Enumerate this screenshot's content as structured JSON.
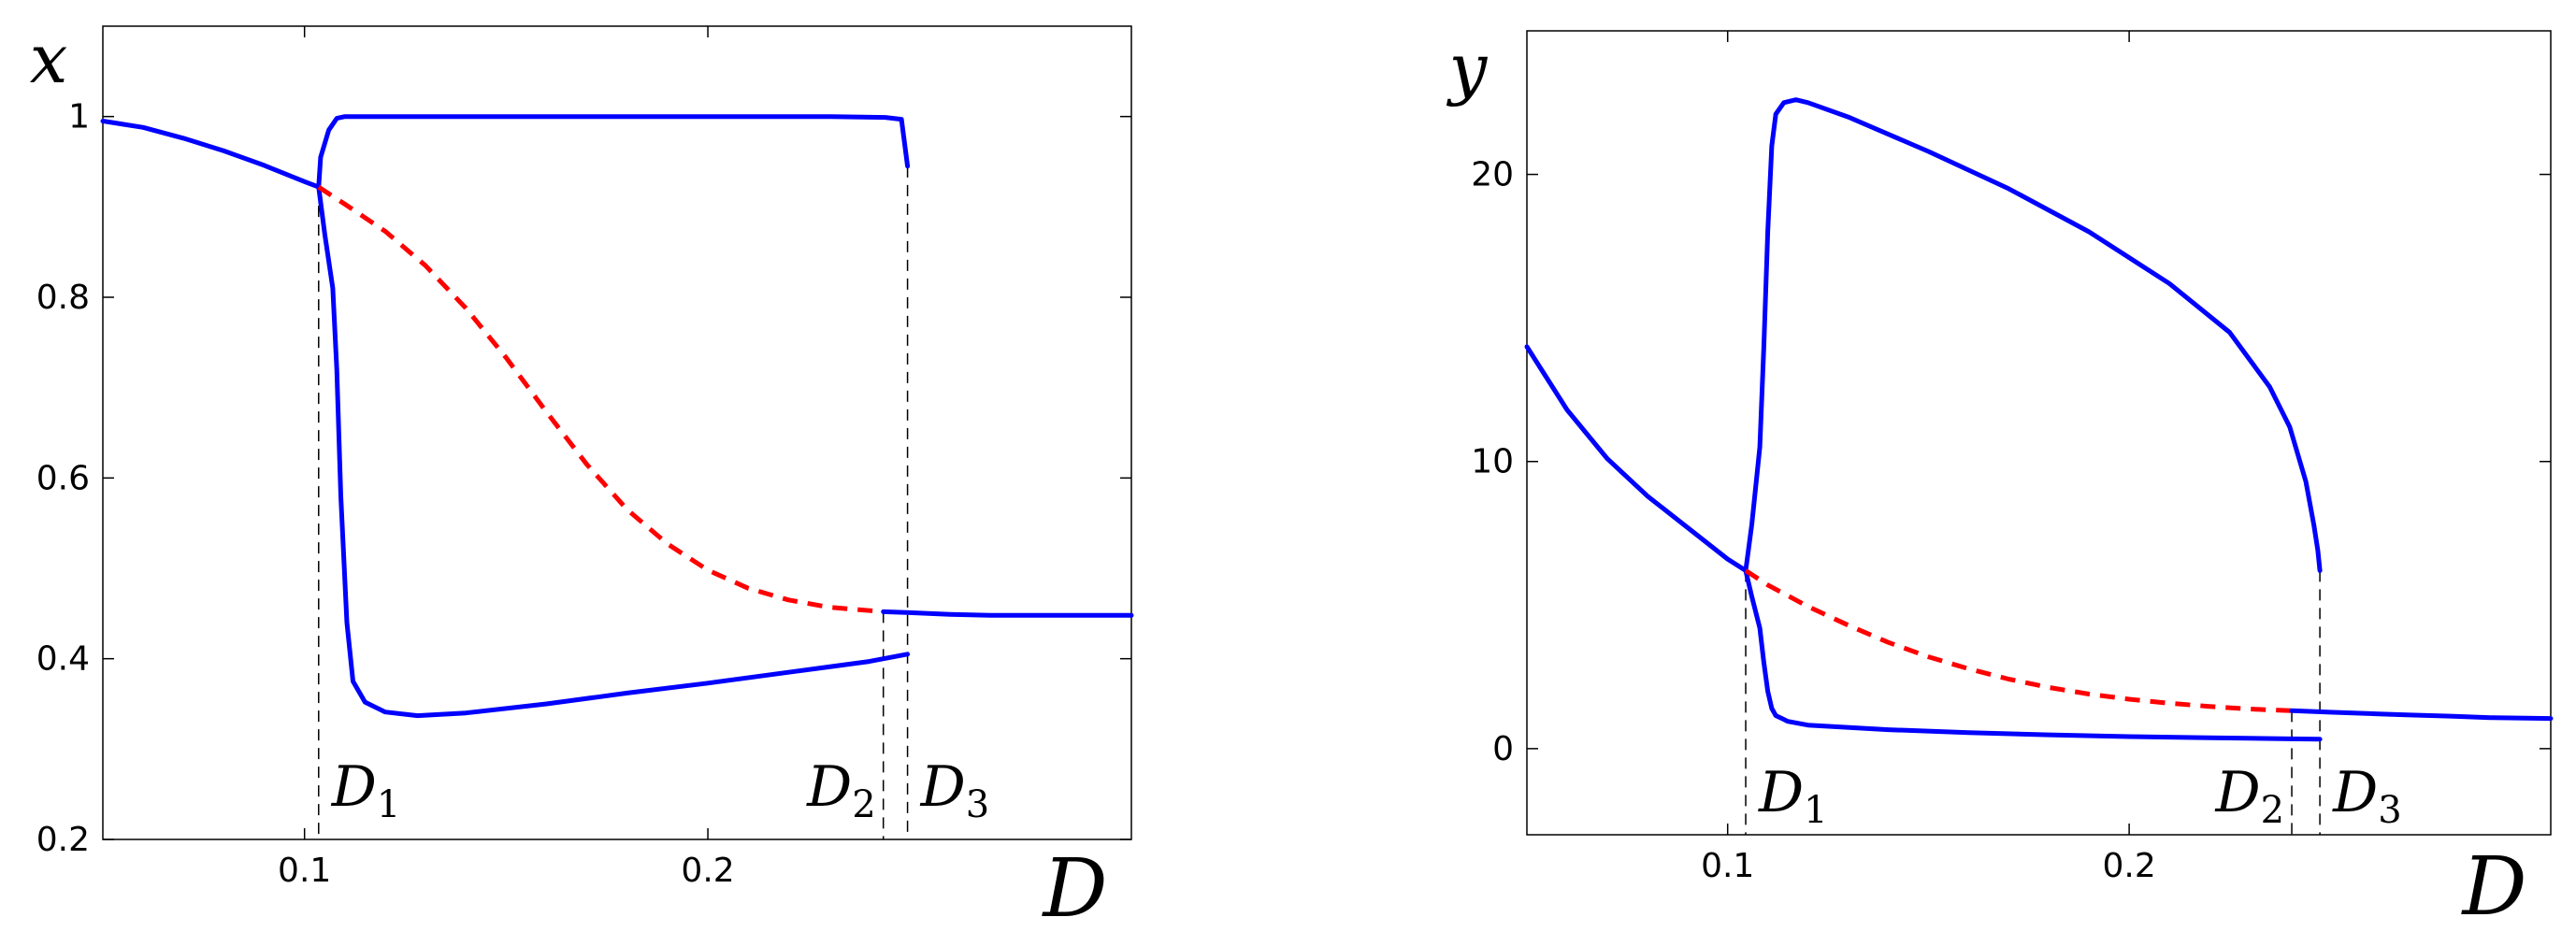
{
  "chart_data": [
    {
      "type": "line",
      "xlabel": "D",
      "ylabel": "x",
      "xlim": [
        0.05,
        0.305
      ],
      "ylim": [
        0.2,
        1.1
      ],
      "xticks": [
        0.1,
        0.2
      ],
      "xtick_labels": [
        "0.1",
        "0.2"
      ],
      "yticks": [
        0.2,
        0.4,
        0.6,
        0.8,
        1.0
      ],
      "ytick_labels": [
        "0.2",
        "0.4",
        "0.6",
        "0.8",
        "1"
      ],
      "grid": false,
      "series": [
        {
          "style": "solid",
          "color": "#0000ff",
          "x": [
            0.05,
            0.06,
            0.07,
            0.08,
            0.09,
            0.1,
            0.1035
          ],
          "y": [
            0.995,
            0.988,
            0.976,
            0.962,
            0.946,
            0.928,
            0.922
          ]
        },
        {
          "style": "solid",
          "color": "#0000ff",
          "x": [
            0.1035,
            0.104,
            0.106,
            0.108,
            0.11,
            0.13,
            0.16,
            0.2,
            0.23,
            0.244,
            0.248,
            0.2495
          ],
          "y": [
            0.922,
            0.955,
            0.985,
            0.998,
            1.0,
            1.0,
            1.0,
            1.0,
            1.0,
            0.999,
            0.997,
            0.945
          ]
        },
        {
          "style": "solid",
          "color": "#0000ff",
          "x": [
            0.1035,
            0.105,
            0.107,
            0.108,
            0.109,
            0.1105,
            0.112,
            0.115,
            0.12,
            0.128,
            0.14,
            0.16,
            0.18,
            0.2,
            0.22,
            0.24,
            0.2495
          ],
          "y": [
            0.922,
            0.87,
            0.81,
            0.72,
            0.58,
            0.44,
            0.375,
            0.352,
            0.341,
            0.337,
            0.34,
            0.35,
            0.362,
            0.373,
            0.385,
            0.397,
            0.405
          ]
        },
        {
          "style": "dashed",
          "color": "#ff0000",
          "x": [
            0.1035,
            0.11,
            0.12,
            0.13,
            0.14,
            0.15,
            0.16,
            0.17,
            0.18,
            0.19,
            0.2,
            0.21,
            0.22,
            0.23,
            0.2435
          ],
          "y": [
            0.922,
            0.903,
            0.873,
            0.835,
            0.788,
            0.733,
            0.673,
            0.615,
            0.565,
            0.527,
            0.498,
            0.478,
            0.465,
            0.457,
            0.452
          ]
        },
        {
          "style": "solid",
          "color": "#0000ff",
          "x": [
            0.2435,
            0.25,
            0.26,
            0.27,
            0.28,
            0.29,
            0.305
          ],
          "y": [
            0.452,
            0.451,
            0.449,
            0.448,
            0.448,
            0.448,
            0.448
          ]
        }
      ],
      "markers": [
        {
          "label": "D",
          "sub": "1",
          "x": 0.1035
        },
        {
          "label": "D",
          "sub": "2",
          "x": 0.2435
        },
        {
          "label": "D",
          "sub": "3",
          "x": 0.2495
        }
      ]
    },
    {
      "type": "line",
      "xlabel": "D",
      "ylabel": "y",
      "xlim": [
        0.05,
        0.305
      ],
      "ylim": [
        -3,
        25
      ],
      "xticks": [
        0.1,
        0.2
      ],
      "xtick_labels": [
        "0.1",
        "0.2"
      ],
      "yticks": [
        0,
        10,
        20
      ],
      "ytick_labels": [
        "0",
        "10",
        "20"
      ],
      "grid": false,
      "series": [
        {
          "style": "solid",
          "color": "#0000ff",
          "x": [
            0.05,
            0.06,
            0.07,
            0.08,
            0.09,
            0.1,
            0.1045
          ],
          "y": [
            14.0,
            11.8,
            10.1,
            8.8,
            7.7,
            6.6,
            6.2
          ]
        },
        {
          "style": "solid",
          "color": "#0000ff",
          "x": [
            0.1045,
            0.106,
            0.108,
            0.109,
            0.11,
            0.111,
            0.112,
            0.114,
            0.117,
            0.12,
            0.13,
            0.15,
            0.17,
            0.19,
            0.21,
            0.225,
            0.235,
            0.24,
            0.244,
            0.246,
            0.247,
            0.2475
          ],
          "y": [
            6.2,
            7.8,
            10.5,
            14.0,
            18.0,
            21.0,
            22.1,
            22.5,
            22.6,
            22.5,
            22.0,
            20.8,
            19.5,
            18.0,
            16.2,
            14.5,
            12.6,
            11.2,
            9.3,
            7.8,
            6.9,
            6.2
          ]
        },
        {
          "style": "solid",
          "color": "#0000ff",
          "x": [
            0.1045,
            0.106,
            0.108,
            0.109,
            0.11,
            0.111,
            0.112,
            0.115,
            0.12,
            0.14,
            0.16,
            0.18,
            0.2,
            0.22,
            0.24,
            0.2475
          ],
          "y": [
            6.2,
            5.3,
            4.2,
            3.0,
            2.0,
            1.4,
            1.15,
            0.95,
            0.82,
            0.66,
            0.56,
            0.48,
            0.42,
            0.38,
            0.34,
            0.33
          ]
        },
        {
          "style": "dashed",
          "color": "#ff0000",
          "x": [
            0.1045,
            0.11,
            0.12,
            0.13,
            0.14,
            0.15,
            0.16,
            0.17,
            0.18,
            0.19,
            0.2,
            0.21,
            0.22,
            0.23,
            0.2405
          ],
          "y": [
            6.2,
            5.7,
            4.95,
            4.3,
            3.7,
            3.2,
            2.78,
            2.42,
            2.13,
            1.9,
            1.72,
            1.58,
            1.47,
            1.38,
            1.32
          ]
        },
        {
          "style": "solid",
          "color": "#0000ff",
          "x": [
            0.2405,
            0.25,
            0.26,
            0.27,
            0.28,
            0.29,
            0.305
          ],
          "y": [
            1.32,
            1.27,
            1.22,
            1.17,
            1.13,
            1.08,
            1.05
          ]
        }
      ],
      "markers": [
        {
          "label": "D",
          "sub": "1",
          "x": 0.1045
        },
        {
          "label": "D",
          "sub": "2",
          "x": 0.2405
        },
        {
          "label": "D",
          "sub": "3",
          "x": 0.2475
        }
      ]
    }
  ]
}
